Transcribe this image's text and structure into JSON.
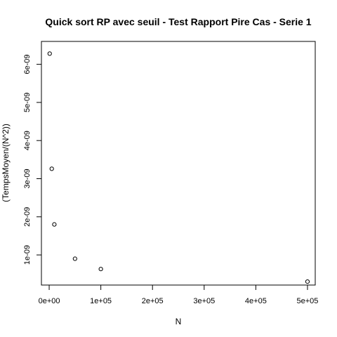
{
  "chart_data": {
    "type": "scatter",
    "title": "Quick sort RP avec seuil - Test Rapport Pire Cas - Serie 1",
    "xlabel": "N",
    "ylabel": "(TempsMoyen/(N^2))",
    "xlim": [
      -15000,
      515000
    ],
    "ylim": [
      2.1e-10,
      6.6e-09
    ],
    "x_ticks": [
      {
        "value": 0,
        "label": "0e+00"
      },
      {
        "value": 100000,
        "label": "1e+05"
      },
      {
        "value": 200000,
        "label": "2e+05"
      },
      {
        "value": 300000,
        "label": "3e+05"
      },
      {
        "value": 400000,
        "label": "4e+05"
      },
      {
        "value": 500000,
        "label": "5e+05"
      }
    ],
    "y_ticks": [
      {
        "value": 1e-09,
        "label": "1e-09"
      },
      {
        "value": 2e-09,
        "label": "2e-09"
      },
      {
        "value": 3e-09,
        "label": "3e-09"
      },
      {
        "value": 4e-09,
        "label": "4e-09"
      },
      {
        "value": 5e-09,
        "label": "5e-09"
      },
      {
        "value": 6e-09,
        "label": "6e-09"
      }
    ],
    "points": [
      {
        "x": 1000,
        "y": 6.28e-09
      },
      {
        "x": 5000,
        "y": 3.26e-09
      },
      {
        "x": 10000,
        "y": 1.8e-09
      },
      {
        "x": 50000,
        "y": 9e-10
      },
      {
        "x": 100000,
        "y": 6.3e-10
      },
      {
        "x": 500000,
        "y": 3e-10
      }
    ],
    "marker": "open-circle",
    "grid": false,
    "colors": {
      "marker": "#000000",
      "axis": "#000000",
      "background": "#ffffff"
    }
  }
}
